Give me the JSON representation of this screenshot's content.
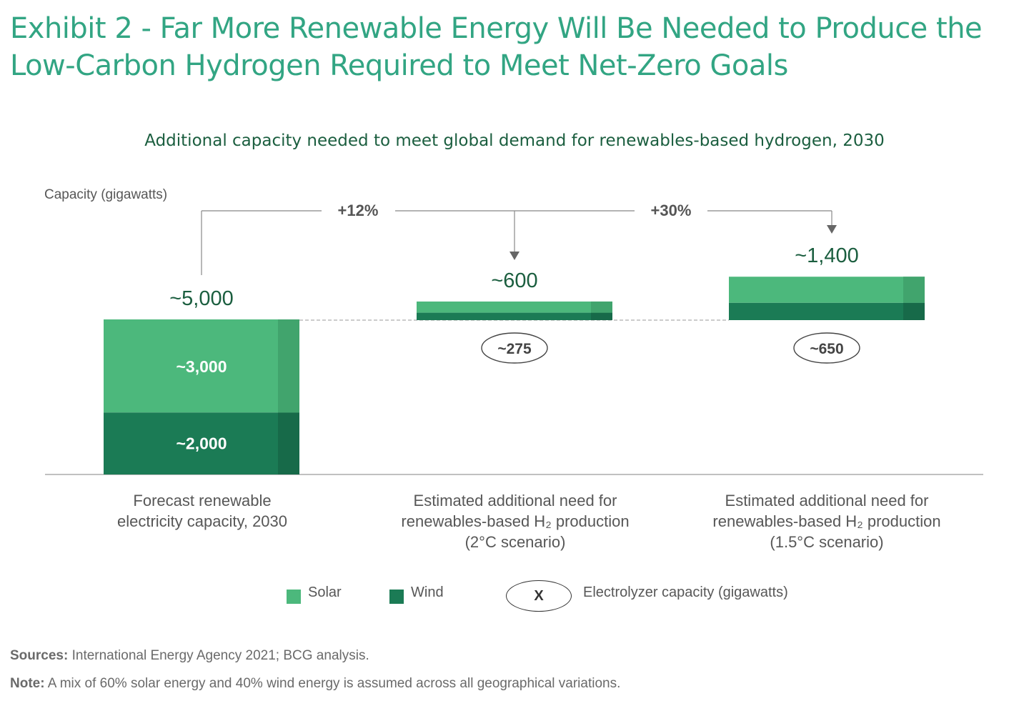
{
  "title": "Exhibit 2 - Far More Renewable Energy Will Be Needed to Produce the Low-Carbon Hydrogen Required to Meet Net-Zero Goals",
  "colors": {
    "title": "#32a583",
    "solid_green": "#4cb87c",
    "wind_green": "#1b7b55",
    "subtitle": "#1b5e3f"
  },
  "chart_data": {
    "type": "bar",
    "title": "Additional capacity needed to meet global demand for renewables-based hydrogen, 2030",
    "ylabel": "Capacity (gigawatts)",
    "categories": [
      {
        "line1": "Forecast renewable",
        "line2": "electricity capacity, 2030",
        "line3": ""
      },
      {
        "line1": "Estimated additional need for",
        "line2": "renewables-based H₂ production",
        "line3": "(2°C scenario)"
      },
      {
        "line1": "Estimated additional need for",
        "line2": "renewables-based H₂ production",
        "line3": "(1.5°C scenario)"
      }
    ],
    "series": [
      {
        "name": "Wind",
        "values": [
          2000,
          240,
          560
        ]
      },
      {
        "name": "Solar",
        "values": [
          3000,
          360,
          840
        ]
      }
    ],
    "segment_labels": [
      "~3,000",
      "~2,000"
    ],
    "totals": [
      "~5,000",
      "~600",
      "~1,400"
    ],
    "electrolyzer_capacity": [
      "",
      "~275",
      "~650"
    ],
    "increases": [
      "+12%",
      "+30%"
    ],
    "legend": {
      "solar": "Solar",
      "wind": "Wind",
      "marker": "X",
      "electrolyzer": "Electrolyzer capacity (gigawatts)"
    }
  },
  "footer": {
    "sources_label": "Sources:",
    "sources_text": "International Energy Agency 2021; BCG analysis.",
    "note_label": "Note:",
    "note_text": "A mix of 60% solar energy and 40% wind energy is assumed across all geographical variations."
  }
}
